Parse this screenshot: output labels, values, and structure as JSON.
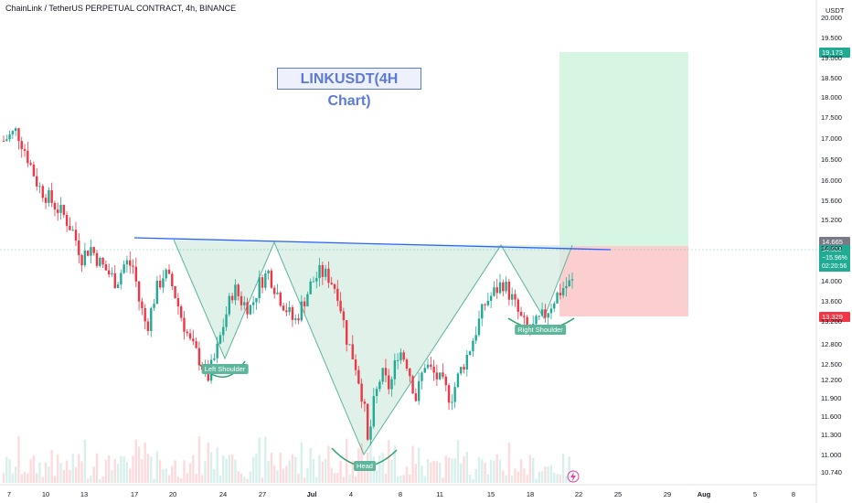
{
  "header": {
    "symbol_info": "ChainLink / TetherUS PERPETUAL CONTRACT, 4h, BINANCE",
    "currency": "USDT"
  },
  "annotation": {
    "title": "LINKUSDT(4H Chart)"
  },
  "labels": {
    "left_shoulder": "Left Shoulder",
    "head": "Head",
    "right_shoulder": "Right Shoulder"
  },
  "price_badges": {
    "target": "19.173",
    "level": "14.665",
    "current": "14.603",
    "change": "−15.96%",
    "countdown": "02:20:56",
    "stop": "13.329"
  },
  "colors": {
    "up": "#22ab94",
    "down": "#f23645",
    "neckline": "#2962ff",
    "pattern_fill": "#d7ede4",
    "target_zone": "#d6f5e2",
    "stop_zone": "#fbcfcf",
    "target_badge": "#22ab94",
    "stop_badge": "#f23645",
    "level_badge": "#787b86"
  },
  "chart_data": {
    "type": "candlestick",
    "title": "LINKUSDT(4H Chart)",
    "ylim": [
      10.6,
      20.0
    ],
    "y_ticks": [
      "20.000",
      "19.500",
      "19.000",
      "18.500",
      "18.000",
      "17.500",
      "17.000",
      "16.500",
      "16.000",
      "15.600",
      "15.200",
      "14.600",
      "14.000",
      "13.600",
      "13.200",
      "12.800",
      "12.500",
      "12.200",
      "11.900",
      "11.600",
      "11.300",
      "11.000",
      "10.740"
    ],
    "x_ticks": [
      "7",
      "10",
      "13",
      "17",
      "20",
      "24",
      "27",
      "Jul",
      "4",
      "8",
      "11",
      "15",
      "18",
      "22",
      "25",
      "29",
      "Aug",
      "5",
      "8"
    ],
    "price_path": [
      [
        0,
        17.4
      ],
      [
        3,
        17.6
      ],
      [
        5,
        17.2
      ],
      [
        8,
        16.5
      ],
      [
        10,
        16.3
      ],
      [
        12,
        16.1
      ],
      [
        14,
        15.9
      ],
      [
        16,
        15.6
      ],
      [
        18,
        15.1
      ],
      [
        20,
        15.3
      ],
      [
        22,
        15.0
      ],
      [
        24,
        14.8
      ],
      [
        26,
        14.6
      ],
      [
        28,
        15.0
      ],
      [
        30,
        14.9
      ],
      [
        31,
        14.3
      ],
      [
        33,
        13.7
      ],
      [
        35,
        14.4
      ],
      [
        37,
        14.8
      ],
      [
        39,
        14.5
      ],
      [
        41,
        13.9
      ],
      [
        43,
        13.4
      ],
      [
        45,
        13.1
      ],
      [
        47,
        12.7
      ],
      [
        49,
        13.2
      ],
      [
        51,
        13.9
      ],
      [
        53,
        14.5
      ],
      [
        55,
        14.2
      ],
      [
        57,
        14.1
      ],
      [
        59,
        14.6
      ],
      [
        61,
        14.8
      ],
      [
        63,
        14.4
      ],
      [
        65,
        14.1
      ],
      [
        67,
        13.8
      ],
      [
        69,
        14.2
      ],
      [
        71,
        14.6
      ],
      [
        73,
        14.8
      ],
      [
        75,
        14.7
      ],
      [
        77,
        14.4
      ],
      [
        79,
        13.5
      ],
      [
        81,
        13.0
      ],
      [
        83,
        12.2
      ],
      [
        84,
        11.3
      ],
      [
        85,
        12.1
      ],
      [
        87,
        12.8
      ],
      [
        89,
        12.5
      ],
      [
        91,
        13.3
      ],
      [
        93,
        13.0
      ],
      [
        95,
        12.3
      ],
      [
        97,
        13.0
      ],
      [
        99,
        12.8
      ],
      [
        101,
        12.6
      ],
      [
        103,
        12.3
      ],
      [
        105,
        12.8
      ],
      [
        107,
        13.2
      ],
      [
        109,
        13.7
      ],
      [
        111,
        14.2
      ],
      [
        113,
        14.4
      ],
      [
        115,
        14.6
      ],
      [
        117,
        14.3
      ],
      [
        119,
        13.9
      ],
      [
        121,
        13.6
      ],
      [
        123,
        13.8
      ],
      [
        125,
        14.0
      ],
      [
        127,
        14.3
      ],
      [
        129,
        14.5
      ],
      [
        131,
        14.6
      ]
    ],
    "volume_note": "volume bars shown at bottom",
    "pattern": "inverse head and shoulders",
    "neckline": [
      [
        147,
        14.82
      ],
      [
        668,
        14.65
      ]
    ],
    "shoulders": {
      "left_shoulder": 12.6,
      "head": 11.05,
      "right_shoulder": 13.3
    },
    "target": 19.173,
    "entry": 14.603,
    "stop": 13.329
  }
}
